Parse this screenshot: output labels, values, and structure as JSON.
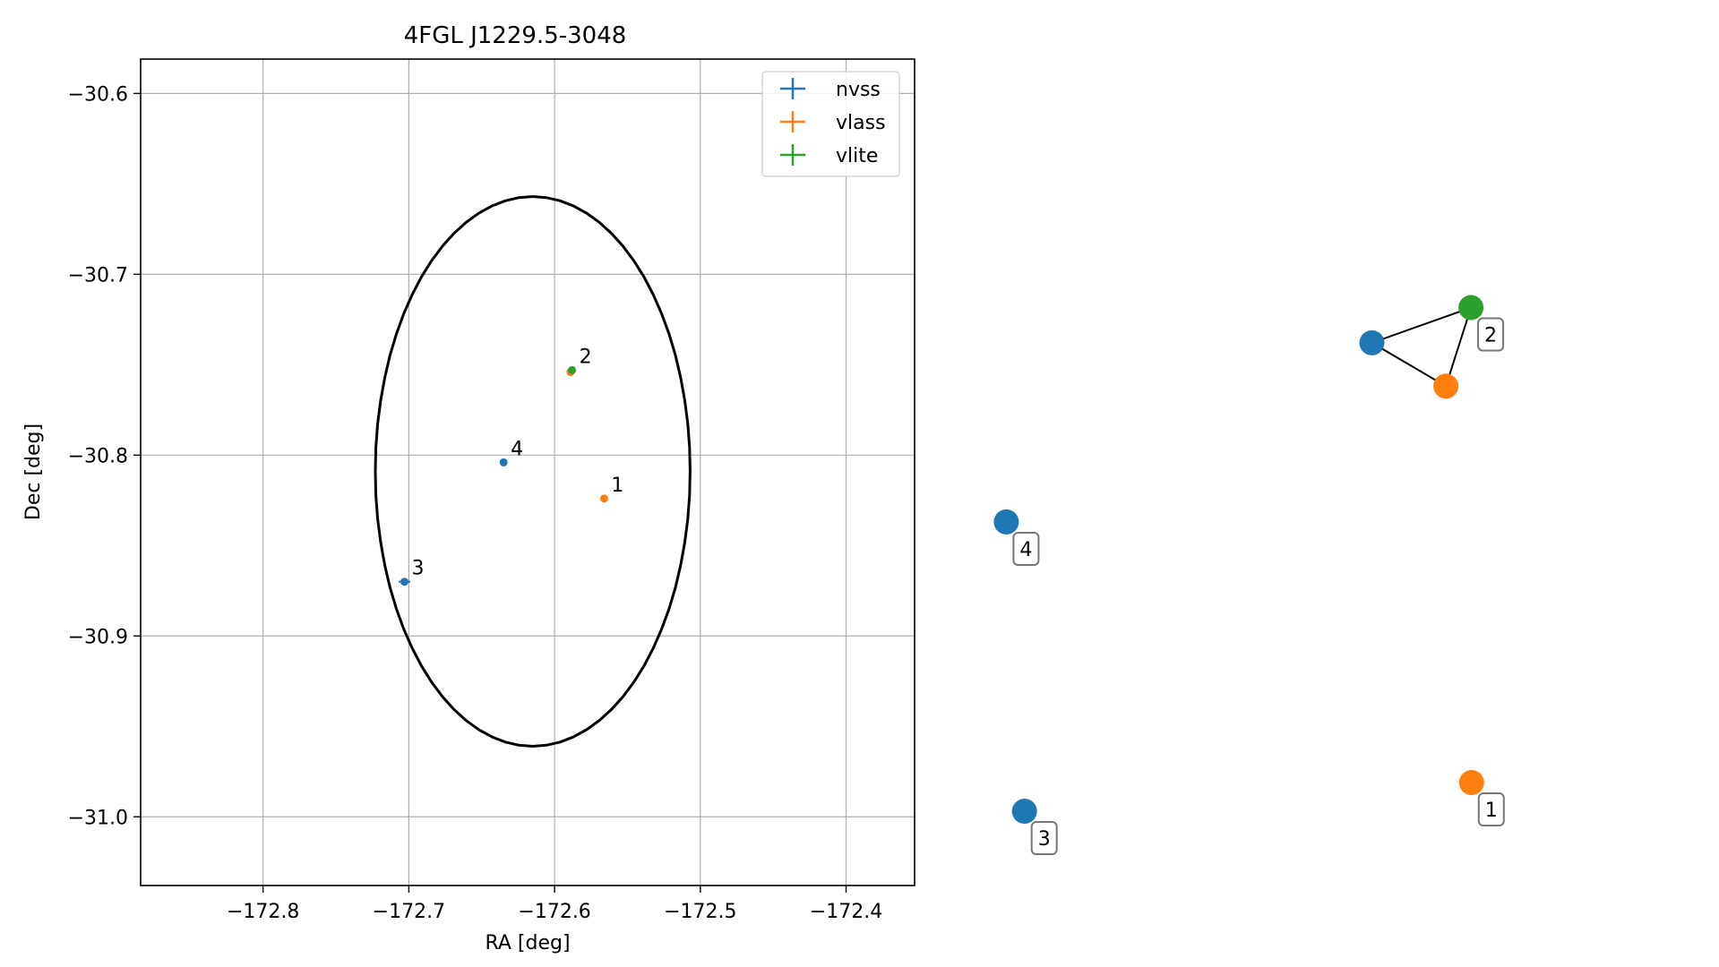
{
  "chart_data": [
    {
      "type": "scatter",
      "title": "4FGL J1229.5-3048",
      "xlabel": "RA [deg]",
      "ylabel": "Dec [deg]",
      "xlim": [
        -172.884,
        -172.353
      ],
      "ylim": [
        -31.038,
        -30.581
      ],
      "xticks": [
        -172.8,
        -172.7,
        -172.6,
        -172.5,
        -172.4
      ],
      "xtick_labels": [
        "−172.8",
        "−172.7",
        "−172.6",
        "−172.5",
        "−172.4"
      ],
      "yticks": [
        -30.6,
        -30.7,
        -30.8,
        -30.9,
        -31.0
      ],
      "ytick_labels": [
        "−30.6",
        "−30.7",
        "−30.8",
        "−30.9",
        "−31.0"
      ],
      "grid": true,
      "legend_position": "top-right",
      "series": [
        {
          "name": "nvss",
          "color": "#1f77b4",
          "points": [
            {
              "x": -172.589,
              "y": -30.754,
              "label": ""
            },
            {
              "x": -172.703,
              "y": -30.87,
              "label": "3",
              "xerr": 0.004
            },
            {
              "x": -172.635,
              "y": -30.804,
              "label": "4"
            }
          ]
        },
        {
          "name": "vlass",
          "color": "#ff7f0e",
          "points": [
            {
              "x": -172.566,
              "y": -30.824,
              "label": "1"
            },
            {
              "x": -172.589,
              "y": -30.754,
              "label": ""
            }
          ]
        },
        {
          "name": "vlite",
          "color": "#2ca02c",
          "points": [
            {
              "x": -172.588,
              "y": -30.753,
              "label": "2"
            }
          ]
        }
      ],
      "ellipse": {
        "center_ra": -172.615,
        "center_dec": -30.809,
        "semi_ra": 0.108,
        "semi_dec": 0.152,
        "color": "#000000"
      }
    },
    {
      "type": "network",
      "nodes": [
        {
          "id": "n_nvss2",
          "color": "#1f77b4",
          "x": 0.645,
          "y": 0.716
        },
        {
          "id": "n_vlite2",
          "color": "#2ca02c",
          "x": 0.803,
          "y": 0.764
        },
        {
          "id": "n_vlass2",
          "color": "#ff7f0e",
          "x": 0.763,
          "y": 0.657
        },
        {
          "id": "n_nvss4",
          "color": "#1f77b4",
          "x": 0.062,
          "y": 0.472
        },
        {
          "id": "n_nvss3",
          "color": "#1f77b4",
          "x": 0.091,
          "y": 0.078
        },
        {
          "id": "n_vlass1",
          "color": "#ff7f0e",
          "x": 0.804,
          "y": 0.117
        }
      ],
      "edges": [
        [
          "n_nvss2",
          "n_vlite2"
        ],
        [
          "n_nvss2",
          "n_vlass2"
        ],
        [
          "n_vlite2",
          "n_vlass2"
        ]
      ],
      "labels": [
        {
          "text": "2",
          "node": "n_vlite2"
        },
        {
          "text": "4",
          "node": "n_nvss4"
        },
        {
          "text": "3",
          "node": "n_nvss3"
        },
        {
          "text": "1",
          "node": "n_vlass1"
        }
      ]
    }
  ]
}
